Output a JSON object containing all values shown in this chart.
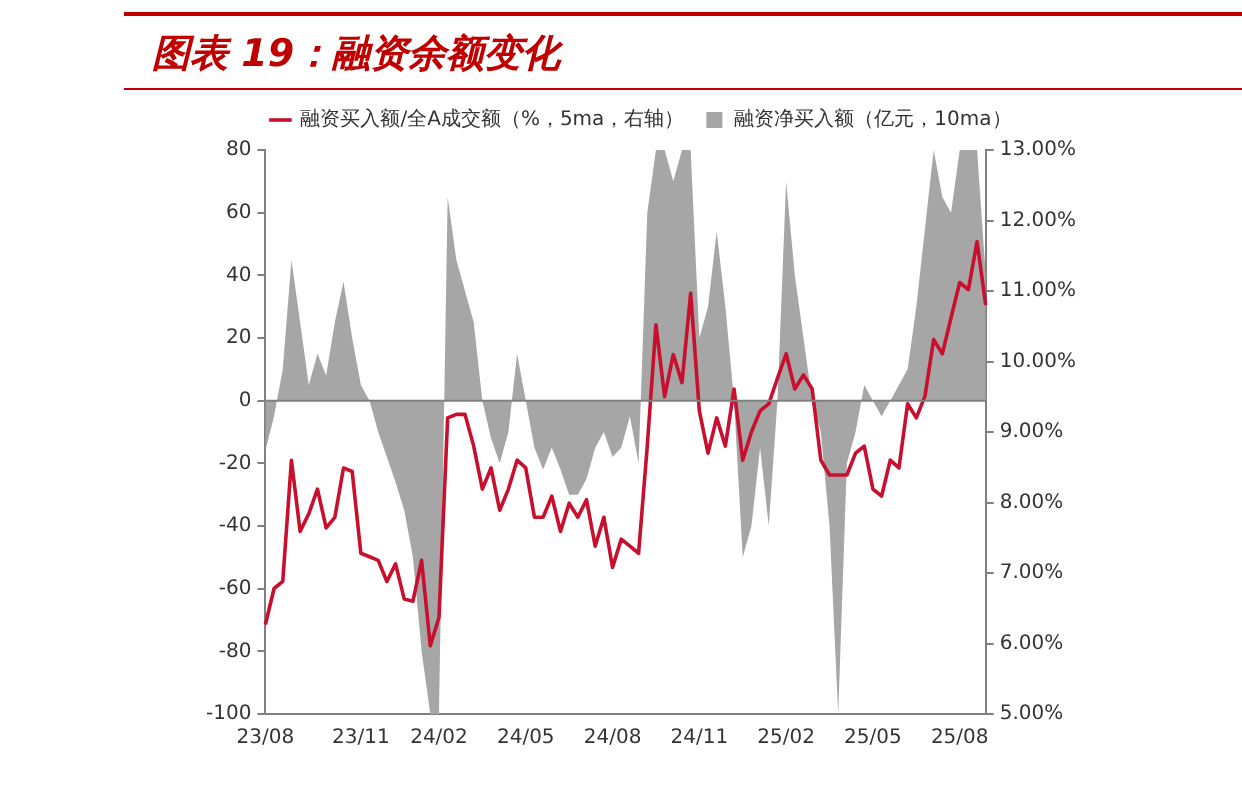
{
  "chart_data": {
    "type": "area",
    "title": "图表 19：融资余额变化",
    "categories": [
      "23/08",
      null,
      null,
      null,
      null,
      null,
      null,
      null,
      null,
      null,
      null,
      "23/11",
      null,
      null,
      null,
      null,
      null,
      null,
      null,
      null,
      "24/02",
      null,
      null,
      null,
      null,
      null,
      null,
      null,
      null,
      null,
      "24/05",
      null,
      null,
      null,
      null,
      null,
      null,
      null,
      null,
      null,
      "24/08",
      null,
      null,
      null,
      null,
      null,
      null,
      null,
      null,
      null,
      "24/11",
      null,
      null,
      null,
      null,
      null,
      null,
      null,
      null,
      null,
      "25/02",
      null,
      null,
      null,
      null,
      null,
      null,
      null,
      null,
      null,
      "25/05",
      null,
      null,
      null,
      null,
      null,
      null,
      null,
      null,
      null,
      "25/08",
      null,
      null,
      null
    ],
    "series": [
      {
        "name": "融资净买入额（亿元，10ma）",
        "color": "#a6a6a6",
        "values": [
          -16,
          -5,
          10,
          45,
          25,
          5,
          15,
          8,
          25,
          38,
          20,
          5,
          0,
          -10,
          -18,
          -26,
          -35,
          -50,
          -80,
          -100,
          -100,
          65,
          45,
          35,
          25,
          0,
          -12,
          -20,
          -10,
          15,
          0,
          -15,
          -22,
          -15,
          -22,
          -30,
          -30,
          -25,
          -15,
          -10,
          -18,
          -15,
          -5,
          -20,
          60,
          80,
          80,
          70,
          80,
          80,
          20,
          30,
          54,
          30,
          0,
          -50,
          -40,
          -15,
          -40,
          0,
          70,
          40,
          20,
          0,
          -10,
          -40,
          -100,
          -20,
          -10,
          5,
          0,
          -5,
          0,
          5,
          10,
          30,
          55,
          80,
          65,
          60,
          80,
          80,
          80,
          40
        ]
      },
      {
        "name": "融资买入额/全A成交额（%，5ma，右轴）",
        "type": "line",
        "axis": "y2",
        "color": "#c8102e",
        "values": [
          6.27,
          6.78,
          6.88,
          8.6,
          7.59,
          7.84,
          8.19,
          7.64,
          7.79,
          8.49,
          8.44,
          7.28,
          7.23,
          7.18,
          6.88,
          7.13,
          6.63,
          6.6,
          7.18,
          5.97,
          6.37,
          9.2,
          9.25,
          9.25,
          8.8,
          8.19,
          8.49,
          7.89,
          8.19,
          8.6,
          8.49,
          7.79,
          7.79,
          8.09,
          7.59,
          7.99,
          7.79,
          8.04,
          7.38,
          7.79,
          7.08,
          7.48,
          7.38,
          7.28,
          8.8,
          10.52,
          9.5,
          10.1,
          9.7,
          10.97,
          9.3,
          8.7,
          9.2,
          8.8,
          9.61,
          8.6,
          9.0,
          9.3,
          9.4,
          9.76,
          10.11,
          9.61,
          9.81,
          9.61,
          8.6,
          8.39,
          8.39,
          8.39,
          8.7,
          8.8,
          8.19,
          8.09,
          8.6,
          8.49,
          9.4,
          9.2,
          9.51,
          10.31,
          10.11,
          10.62,
          11.12,
          11.02,
          11.7,
          10.8
        ]
      }
    ],
    "ylim": [
      -100,
      80
    ],
    "yticks": [
      -100,
      -80,
      -60,
      -40,
      -20,
      0,
      20,
      40,
      60,
      80
    ],
    "y2lim": [
      5,
      13
    ],
    "y2ticks": [
      {
        "value": 5,
        "label": "5.00%"
      },
      {
        "value": 6,
        "label": "6.00%"
      },
      {
        "value": 7,
        "label": "7.00%"
      },
      {
        "value": 8,
        "label": "8.00%"
      },
      {
        "value": 9,
        "label": "9.00%"
      },
      {
        "value": 10,
        "label": "10.00%"
      },
      {
        "value": 11,
        "label": "11.00%"
      },
      {
        "value": 12,
        "label": "12.00%"
      },
      {
        "value": 13,
        "label": "13.00%"
      }
    ],
    "ref_lines": [
      {
        "axis": "y",
        "value": 0,
        "color": "#808080"
      }
    ],
    "grid": false,
    "legend": "top"
  }
}
